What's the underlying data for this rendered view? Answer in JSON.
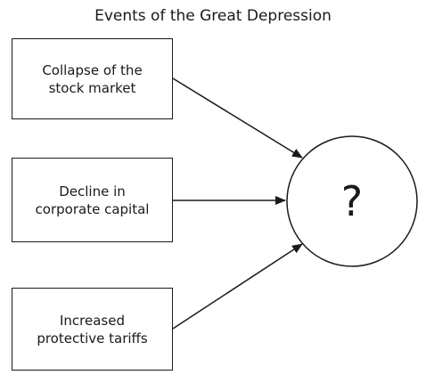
{
  "diagram": {
    "title": "Events of the Great Depression",
    "causes": [
      {
        "label": "Collapse of the\nstock market"
      },
      {
        "label": "Decline in\ncorporate capital"
      },
      {
        "label": "Increased\nprotective tariffs"
      }
    ],
    "effect": {
      "label": "?"
    }
  }
}
